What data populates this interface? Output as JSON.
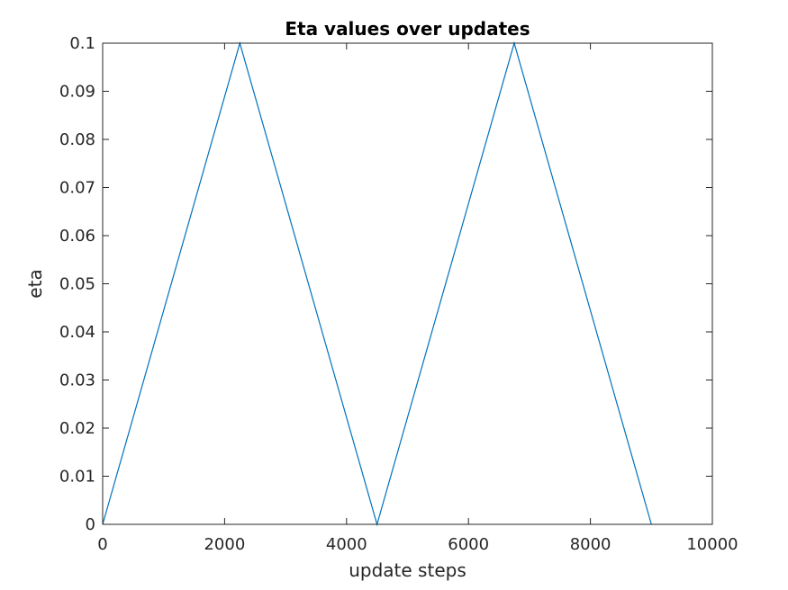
{
  "chart_data": {
    "type": "line",
    "title": "Eta values over updates",
    "xlabel": "update steps",
    "ylabel": "eta",
    "xlim": [
      0,
      10000
    ],
    "ylim": [
      0,
      0.1
    ],
    "xticks": [
      0,
      2000,
      4000,
      6000,
      8000,
      10000
    ],
    "xtick_labels": [
      "0",
      "2000",
      "4000",
      "6000",
      "8000",
      "10000"
    ],
    "yticks": [
      0,
      0.01,
      0.02,
      0.03,
      0.04,
      0.05,
      0.06,
      0.07,
      0.08,
      0.09,
      0.1
    ],
    "ytick_labels": [
      "0",
      "0.01",
      "0.02",
      "0.03",
      "0.04",
      "0.05",
      "0.06",
      "0.07",
      "0.08",
      "0.09",
      "0.1"
    ],
    "grid": false,
    "series": [
      {
        "color": "#0072bd",
        "x": [
          0,
          2250,
          4500,
          6750,
          9000
        ],
        "y": [
          0,
          0.1,
          0,
          0.1,
          0
        ]
      }
    ]
  }
}
